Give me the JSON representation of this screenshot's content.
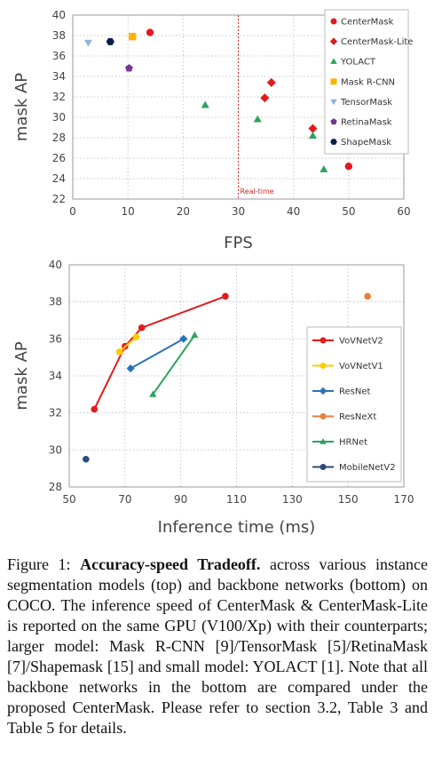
{
  "chart_data": [
    {
      "type": "scatter",
      "xlabel": "FPS",
      "ylabel": "mask AP",
      "xlim": [
        0,
        60
      ],
      "ylim": [
        22,
        40
      ],
      "xticks": [
        0,
        10,
        20,
        30,
        40,
        50,
        60
      ],
      "yticks": [
        22,
        24,
        26,
        28,
        30,
        32,
        34,
        36,
        38,
        40
      ],
      "grid": true,
      "legend_position": "top-right",
      "reference_line": {
        "x": 30,
        "label": "Real-time",
        "color": "#d62728"
      },
      "series": [
        {
          "name": "CenterMask",
          "marker": "circle",
          "color": "#e31a1c",
          "points": [
            [
              14,
              38.3
            ],
            [
              50,
              25.2
            ]
          ]
        },
        {
          "name": "CenterMask-Lite",
          "marker": "diamond",
          "color": "#e31a1c",
          "points": [
            [
              36,
              33.4
            ],
            [
              34.8,
              31.9
            ],
            [
              43.5,
              28.9
            ]
          ]
        },
        {
          "name": "YOLACT",
          "marker": "triangle-up",
          "color": "#2ca25f",
          "points": [
            [
              24,
              31.2
            ],
            [
              33.5,
              29.8
            ],
            [
              43.5,
              28.2
            ],
            [
              45.5,
              24.9
            ]
          ]
        },
        {
          "name": "Mask R-CNN",
          "marker": "square",
          "color": "#ffb300",
          "points": [
            [
              10.8,
              37.9
            ]
          ]
        },
        {
          "name": "TensorMask",
          "marker": "triangle-down",
          "color": "#8fb3e0",
          "points": [
            [
              2.8,
              37.3
            ]
          ]
        },
        {
          "name": "RetinaMask",
          "marker": "pentagon",
          "color": "#7b3294",
          "points": [
            [
              10.2,
              34.8
            ]
          ]
        },
        {
          "name": "ShapeMask",
          "marker": "hexagon",
          "color": "#0b1f4d",
          "points": [
            [
              6.8,
              37.4
            ]
          ]
        }
      ]
    },
    {
      "type": "line",
      "xlabel": "Inference time (ms)",
      "ylabel": "mask AP",
      "xlim": [
        50,
        170
      ],
      "ylim": [
        28,
        40
      ],
      "xticks": [
        50,
        70,
        90,
        110,
        130,
        150,
        170
      ],
      "yticks": [
        28,
        30,
        32,
        34,
        36,
        38,
        40
      ],
      "grid": true,
      "legend_position": "right",
      "series": [
        {
          "name": "VoVNetV2",
          "marker": "circle",
          "color": "#e31a1c",
          "points": [
            [
              59,
              32.2
            ],
            [
              70,
              35.6
            ],
            [
              76,
              36.6
            ],
            [
              106,
              38.3
            ]
          ]
        },
        {
          "name": "VoVNetV1",
          "marker": "circle",
          "color": "#ffcc00",
          "points": [
            [
              68,
              35.3
            ],
            [
              74,
              36.1
            ]
          ]
        },
        {
          "name": "ResNet",
          "marker": "diamond",
          "color": "#2b73b8",
          "points": [
            [
              72,
              34.4
            ],
            [
              91,
              36
            ]
          ]
        },
        {
          "name": "ResNeXt",
          "marker": "circle",
          "color": "#e6803a",
          "points": [
            [
              157,
              38.3
            ]
          ]
        },
        {
          "name": "HRNet",
          "marker": "triangle-up",
          "color": "#2ca25f",
          "points": [
            [
              80,
              33
            ],
            [
              95,
              36.2
            ]
          ]
        },
        {
          "name": "MobileNetV2",
          "marker": "circle",
          "color": "#2d4a7c",
          "points": [
            [
              56,
              29.5
            ]
          ]
        }
      ]
    }
  ],
  "caption": {
    "label": "Figure 1:",
    "title": "Accuracy-speed Tradeoff.",
    "text": "across various instance segmentation models (top) and backbone networks (bottom) on COCO. The inference speed of CenterMask & CenterMask-Lite is reported on the same GPU (V100/Xp) with their counterparts; larger model: Mask R-CNN [9]/TensorMask [5]/RetinaMask [7]/Shapemask [15] and small model: YOLACT [1]. Note that all backbone networks in the bottom are compared under the proposed CenterMask. Please refer to section 3.2, Table 3 and Table 5 for details."
  }
}
